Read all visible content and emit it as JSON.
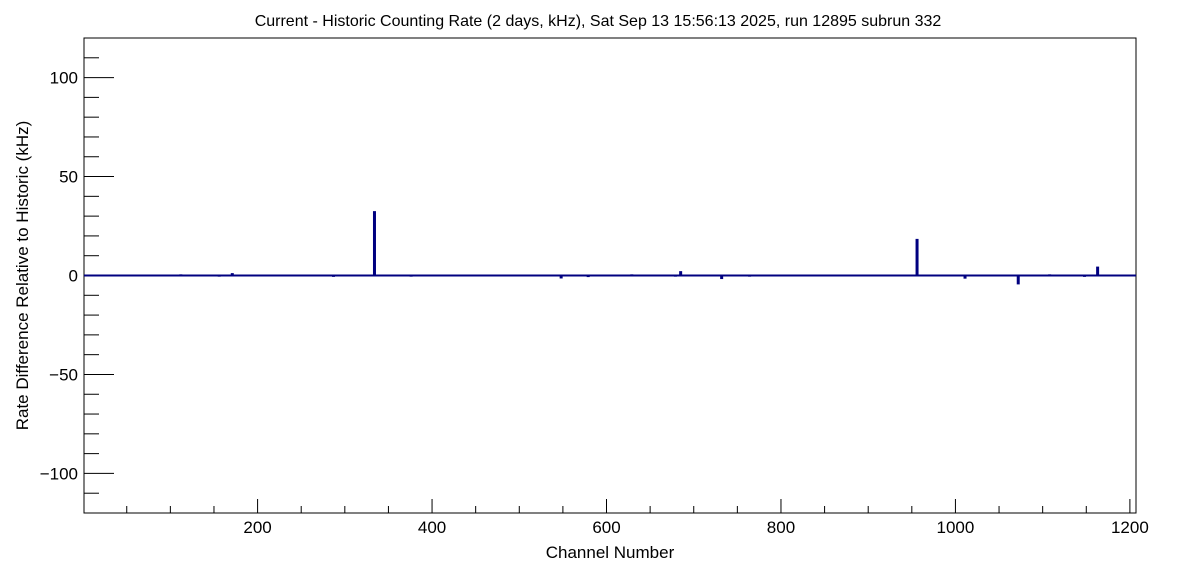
{
  "chart_data": {
    "type": "bar",
    "title": "Current - Historic Counting Rate (2 days, kHz), Sat Sep 13 15:56:13 2025, run 12895 subrun 332",
    "xlabel": "Channel Number",
    "ylabel": "Rate Difference Relative to Historic (kHz)",
    "xlim": [
      1,
      1207
    ],
    "ylim": [
      -120,
      120
    ],
    "x_major_ticks": [
      200,
      400,
      600,
      800,
      1000,
      1200
    ],
    "y_major_ticks": [
      -100,
      -50,
      0,
      50,
      100
    ],
    "x_tick_labels": [
      "200",
      "400",
      "600",
      "800",
      "1000",
      "1200"
    ],
    "y_tick_labels": [
      "−100",
      "−50",
      "0",
      "50",
      "100"
    ],
    "grid": false,
    "legend": "none",
    "series_color": "#000080",
    "baseline": 0,
    "points": [
      {
        "x": 112,
        "y": 0.6
      },
      {
        "x": 156,
        "y": -0.6
      },
      {
        "x": 171,
        "y": 1.2
      },
      {
        "x": 206,
        "y": 0.5
      },
      {
        "x": 287,
        "y": -0.7
      },
      {
        "x": 334,
        "y": 32.5
      },
      {
        "x": 376,
        "y": -0.6
      },
      {
        "x": 548,
        "y": -1.5
      },
      {
        "x": 579,
        "y": -0.8
      },
      {
        "x": 629,
        "y": 0.6
      },
      {
        "x": 679,
        "y": -0.6
      },
      {
        "x": 685,
        "y": 2.2
      },
      {
        "x": 732,
        "y": -1.8
      },
      {
        "x": 764,
        "y": -0.6
      },
      {
        "x": 956,
        "y": 18.5
      },
      {
        "x": 1011,
        "y": -1.6
      },
      {
        "x": 1072,
        "y": -4.5
      },
      {
        "x": 1108,
        "y": 0.6
      },
      {
        "x": 1148,
        "y": -0.7
      },
      {
        "x": 1163,
        "y": 4.5
      }
    ]
  }
}
